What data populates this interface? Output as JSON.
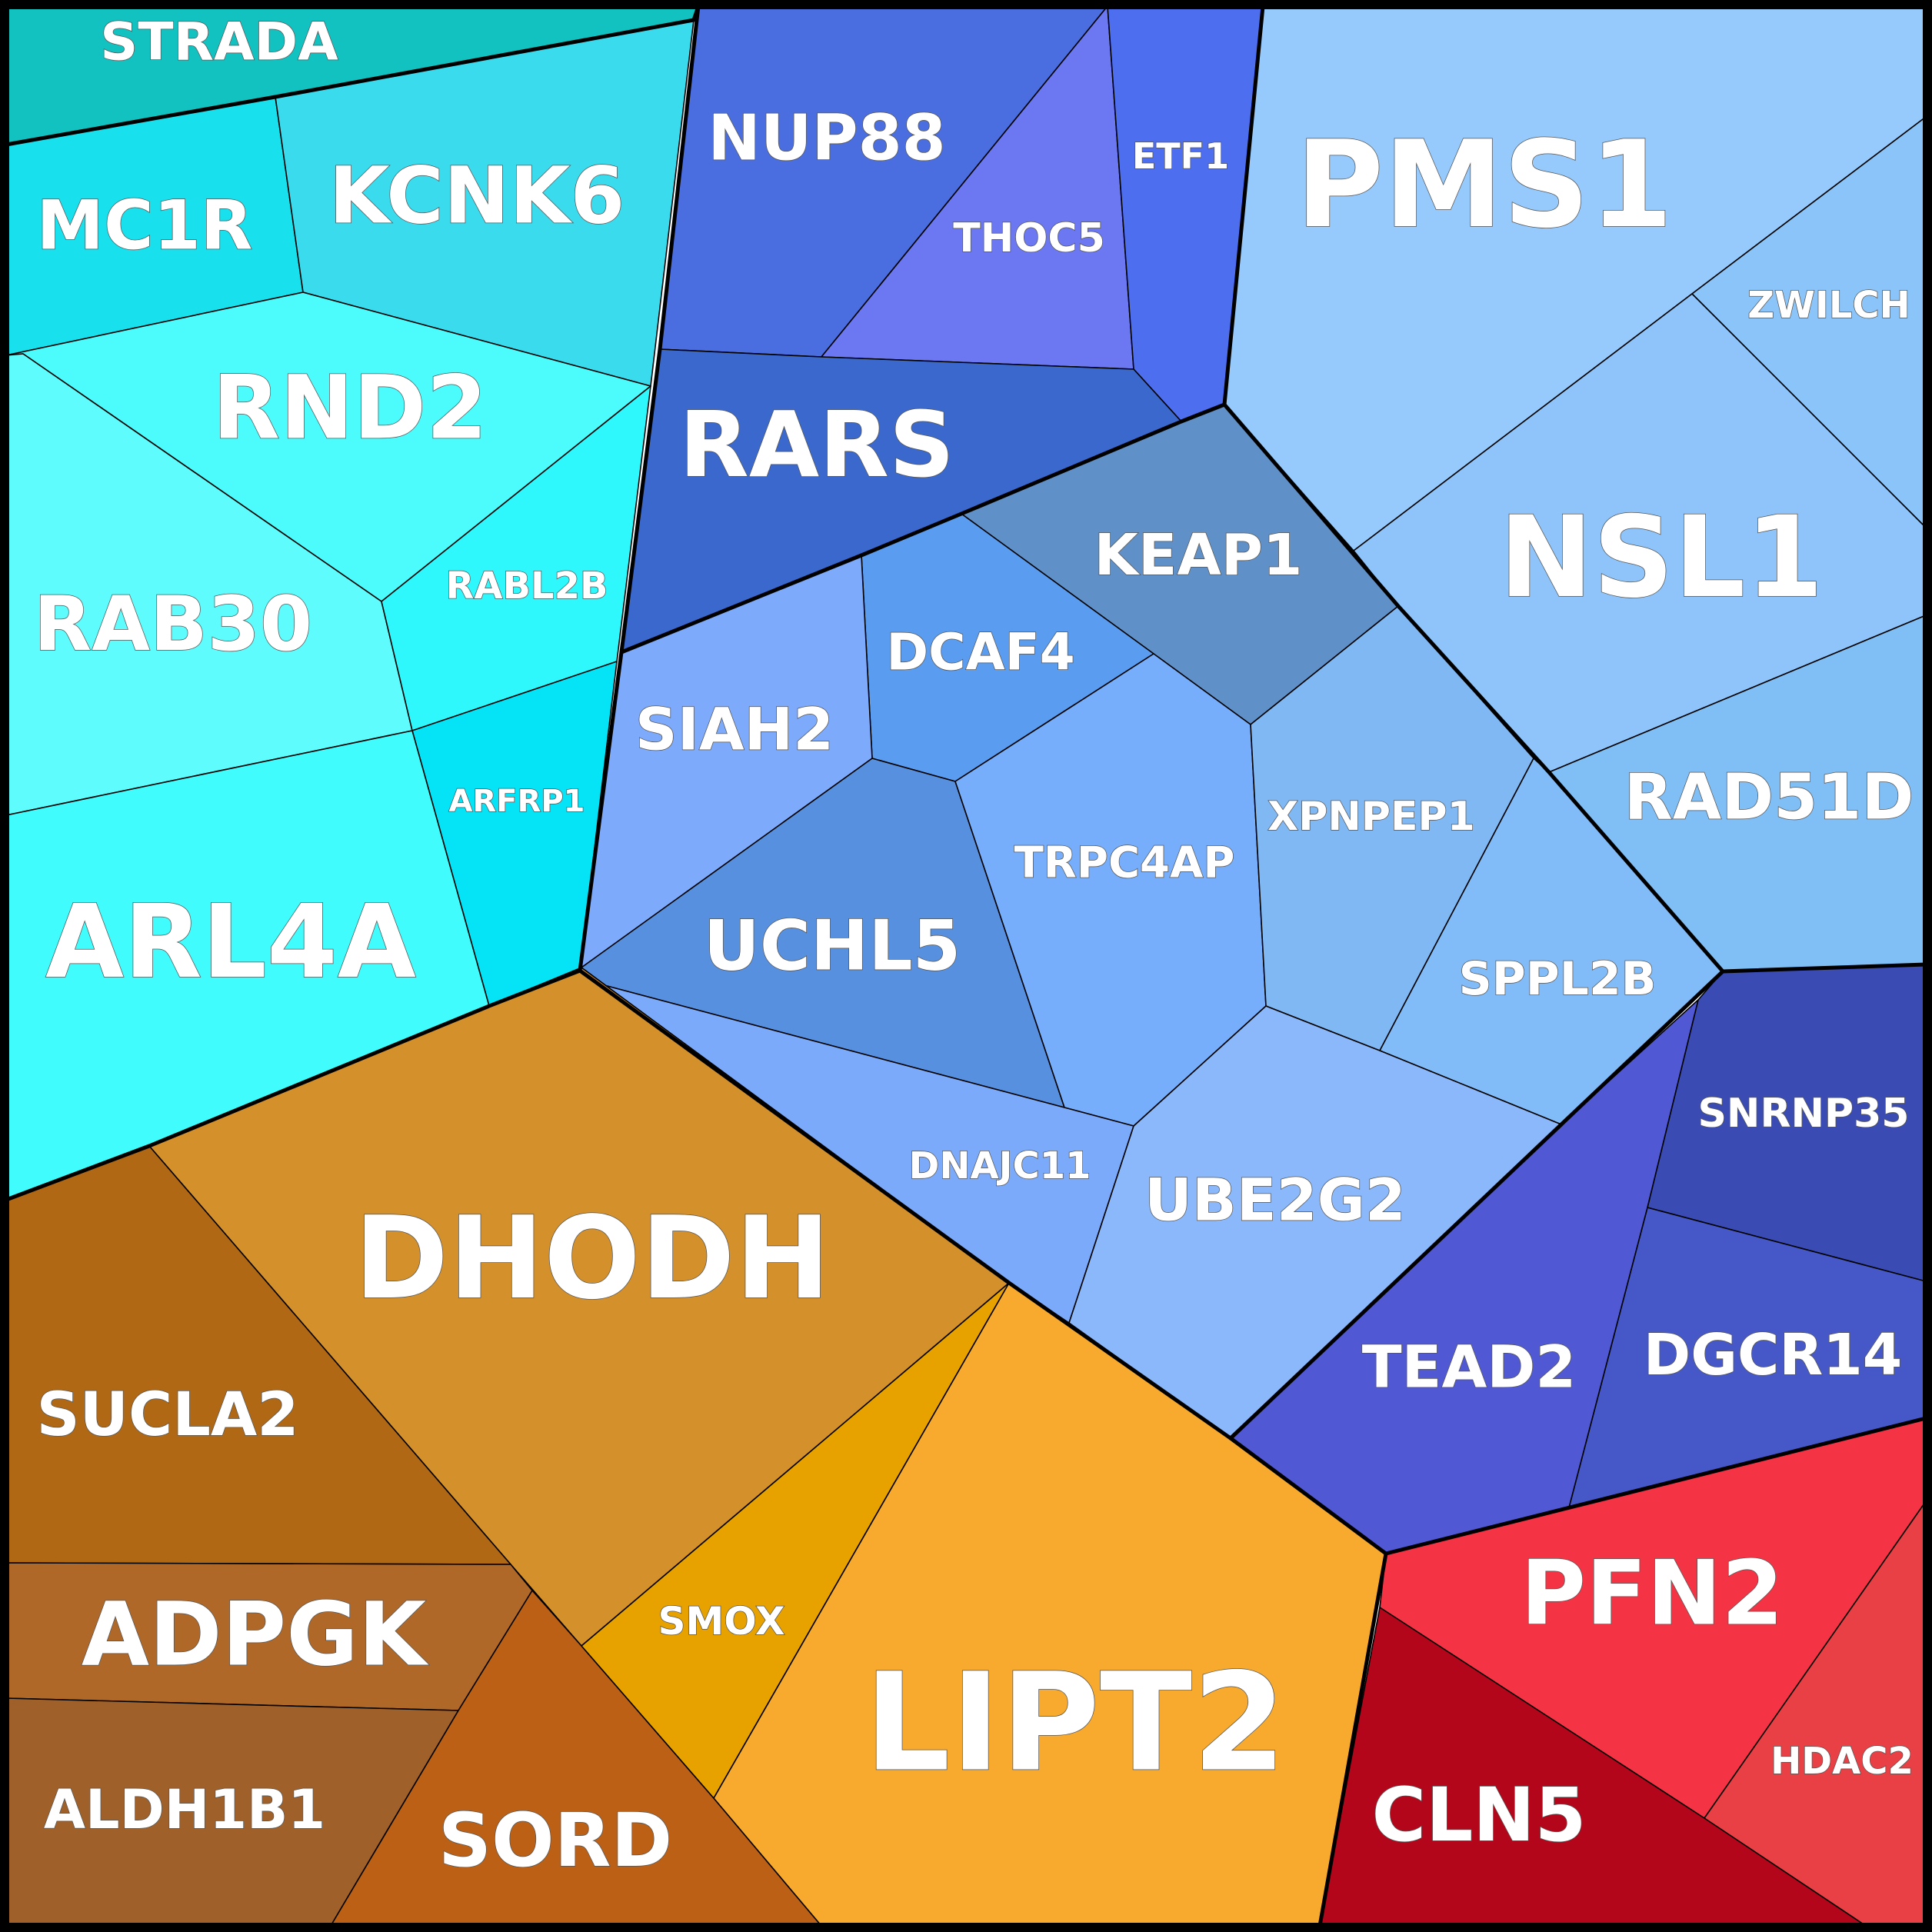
{
  "chart_data": {
    "type": "voronoi-treemap",
    "groups": [
      {
        "name": "cyan",
        "cells": [
          {
            "label": "STRADA",
            "color": "#12c2c0"
          },
          {
            "label": "MC1R",
            "color": "#18e0ec"
          },
          {
            "label": "KCNK6",
            "color": "#3bdbee"
          },
          {
            "label": "RND2",
            "color": "#4cfcfc"
          },
          {
            "label": "RAB30",
            "color": "#5efcfc"
          },
          {
            "label": "RABL2B",
            "color": "#2ef8fc"
          },
          {
            "label": "ARFRP1",
            "color": "#04e4f6"
          },
          {
            "label": "ARL4A",
            "color": "#40fcfc"
          }
        ]
      },
      {
        "name": "blue",
        "cells": [
          {
            "label": "NUP88",
            "color": "#4a6ee0"
          },
          {
            "label": "THOC5",
            "color": "#6b78f2"
          },
          {
            "label": "ETF1",
            "color": "#4e6ef0"
          },
          {
            "label": "RARS",
            "color": "#3a68cc"
          }
        ]
      },
      {
        "name": "light-blue",
        "cells": [
          {
            "label": "PMS1",
            "color": "#96cafc"
          },
          {
            "label": "ZWILCH",
            "color": "#8ac4f8"
          },
          {
            "label": "NSL1",
            "color": "#8ec4fa"
          },
          {
            "label": "RAD51D",
            "color": "#80bef6"
          },
          {
            "label": "KEAP1",
            "color": "#6090c8"
          },
          {
            "label": "DCAF4",
            "color": "#5a9cf0"
          },
          {
            "label": "SIAH2",
            "color": "#7eaafc"
          },
          {
            "label": "UCHL5",
            "color": "#5890e0"
          },
          {
            "label": "TRPC4AP",
            "color": "#76aefc"
          },
          {
            "label": "XPNPEP1",
            "color": "#80b8f4"
          },
          {
            "label": "SPPL2B",
            "color": "#82bcf8"
          },
          {
            "label": "DNAJC11",
            "color": "#7caafa"
          },
          {
            "label": "UBE2G2",
            "color": "#8ab8fa"
          }
        ]
      },
      {
        "name": "indigo",
        "cells": [
          {
            "label": "SNRNP35",
            "color": "#3a4cb4"
          },
          {
            "label": "DGCR14",
            "color": "#4658c8"
          },
          {
            "label": "TEAD2",
            "color": "#5058d4"
          }
        ]
      },
      {
        "name": "orange",
        "cells": [
          {
            "label": "DHODH",
            "color": "#d4902a"
          },
          {
            "label": "SUCLA2",
            "color": "#b06814"
          },
          {
            "label": "ADPGK",
            "color": "#b06828"
          },
          {
            "label": "ALDH1B1",
            "color": "#a0602a"
          },
          {
            "label": "SORD",
            "color": "#bc6016"
          },
          {
            "label": "SMOX",
            "color": "#e8a200"
          },
          {
            "label": "LIPT2",
            "color": "#f8aa2e"
          }
        ]
      },
      {
        "name": "red",
        "cells": [
          {
            "label": "PFN2",
            "color": "#f43444"
          },
          {
            "label": "HDAC2",
            "color": "#e84044"
          },
          {
            "label": "CLN5",
            "color": "#b4061a"
          }
        ]
      }
    ]
  }
}
